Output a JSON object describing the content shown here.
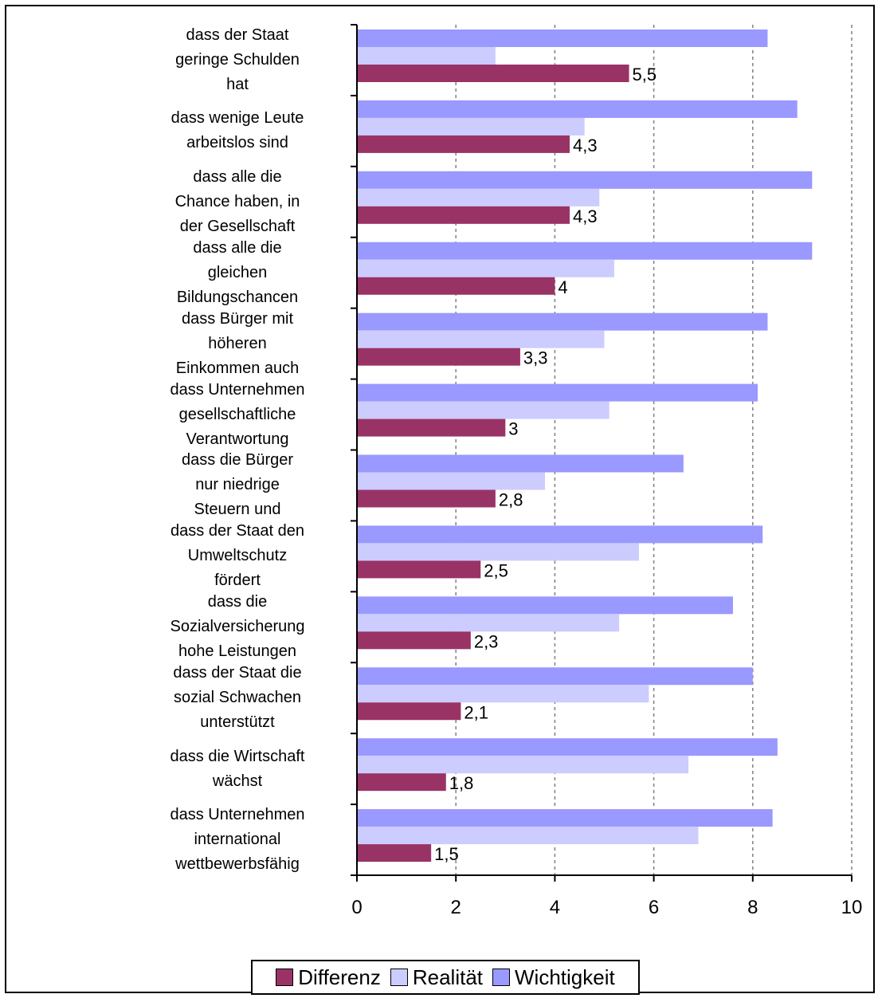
{
  "chart_data": {
    "type": "bar",
    "orientation": "horizontal",
    "categories": [
      "dass der Staat\ngeringe Schulden\nhat",
      "dass wenige Leute\narbeitslos sind",
      "dass alle die\nChance haben, in\nder Gesellschaft",
      "dass alle die\ngleichen\nBildungschancen",
      "dass Bürger mit\nhöheren\nEinkommen auch",
      "dass Unternehmen\ngesellschaftliche\nVerantwortung",
      "dass die Bürger\nnur niedrige\nSteuern und",
      "dass der Staat den\nUmweltschutz\nfördert",
      "dass die\nSozialversicherung\nhohe Leistungen",
      "dass der Staat die\nsozial Schwachen\nunterstützt",
      "dass die Wirtschaft\nwächst",
      "dass Unternehmen\ninternational\nwettbewerbsfähig"
    ],
    "series": [
      {
        "name": "Wichtigkeit",
        "color": "#9999ff",
        "values": [
          8.3,
          8.9,
          9.2,
          9.2,
          8.3,
          8.1,
          6.6,
          8.2,
          7.6,
          8.0,
          8.5,
          8.4
        ]
      },
      {
        "name": "Realität",
        "color": "#ccccff",
        "values": [
          2.8,
          4.6,
          4.9,
          5.2,
          5.0,
          5.1,
          3.8,
          5.7,
          5.3,
          5.9,
          6.7,
          6.9
        ]
      },
      {
        "name": "Differenz",
        "color": "#993366",
        "values": [
          5.5,
          4.3,
          4.3,
          4.0,
          3.3,
          3.0,
          2.8,
          2.5,
          2.3,
          2.1,
          1.8,
          1.5
        ],
        "data_labels": [
          "5,5",
          "4,3",
          "4,3",
          "4",
          "3,3",
          "3",
          "2,8",
          "2,5",
          "2,3",
          "2,1",
          "1,8",
          "1,5"
        ]
      }
    ],
    "xlim": [
      0,
      10
    ],
    "x_ticks": [
      0,
      2,
      4,
      6,
      8,
      10
    ],
    "x_tick_labels": [
      "0",
      "2",
      "4",
      "6",
      "8",
      "10"
    ],
    "grid": "vertical dashed",
    "legend": {
      "position": "bottom-center",
      "items": [
        {
          "label": "Differenz",
          "color": "#993366"
        },
        {
          "label": "Realität",
          "color": "#ccccff"
        },
        {
          "label": "Wichtigkeit",
          "color": "#9999ff"
        }
      ]
    }
  }
}
